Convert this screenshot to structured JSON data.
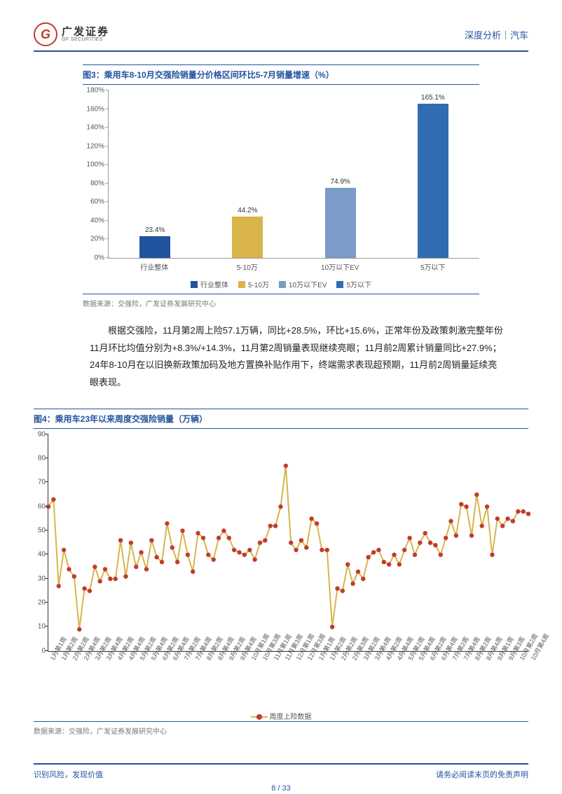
{
  "header": {
    "logo_cn": "广发证券",
    "logo_en": "GF SECURITIES",
    "right": "深度分析｜汽车"
  },
  "fig3": {
    "title": "图3：乘用车8-10月交强险销量分价格区间环比5-7月销量增速（%）",
    "type": "bar",
    "categories": [
      "行业整体",
      "5-10万",
      "10万以下EV",
      "5万以下"
    ],
    "values": [
      23.4,
      44.2,
      74.9,
      165.1
    ],
    "value_labels": [
      "23.4%",
      "44.2%",
      "74.9%",
      "165.1%"
    ],
    "colors": [
      "#2253a0",
      "#d9b44a",
      "#7a9cc6",
      "#2f6db0"
    ],
    "ylim": [
      0,
      180
    ],
    "ytick_step": 20,
    "ytick_suffix": "%",
    "legend": [
      "行业整体",
      "5-10万",
      "10万以下EV",
      "5万以下"
    ],
    "source": "数据来源：交强险，广发证券发展研究中心"
  },
  "body": "根据交强险，11月第2周上险57.1万辆，同比+28.5%，环比+15.6%，正常年份及政策刺激完整年份11月环比均值分别为+8.3%/+14.3%，11月第2周销量表现继续亮眼；11月前2周累计销量同比+27.9%；24年8-10月在以旧换新政策加码及地方置换补贴作用下，终端需求表现超预期，11月前2周销量延续亮眼表现。",
  "fig4": {
    "title": "图4：乘用车23年以来周度交强险销量（万辆）",
    "type": "line",
    "ylim": [
      0,
      90
    ],
    "ytick_step": 10,
    "line_color": "#d9b44a",
    "marker_color": "#c23a2e",
    "series_label": "周度上险数据",
    "x_labels": [
      "1月第1周",
      "1月第2周",
      "2月第2周",
      "2月第4周",
      "3月第2周",
      "3月第4周",
      "4月第2周",
      "4月第4周",
      "5月第2周",
      "5月第4周",
      "6月第2周",
      "6月第4周",
      "7月第2周",
      "7月第4周",
      "8月第2周",
      "8月第4周",
      "9月第2周",
      "9月第4周",
      "10月第1周",
      "10月第3周",
      "11月第1周",
      "11月第3周",
      "12月第1周",
      "12月第3周",
      "1月第1周",
      "1月第2周",
      "2月第2周",
      "2月第3周",
      "3月第2周",
      "3月第4周",
      "4月第2周",
      "4月第4周",
      "5月第2周",
      "5月第4周",
      "6月第2周",
      "6月第4周",
      "7月第2周",
      "7月第4周",
      "8月第2周",
      "8月第4周",
      "9月第1周",
      "9月第3周",
      "10月第2周",
      "10月第4周"
    ],
    "values": [
      60,
      63,
      27,
      42,
      34,
      31,
      9,
      26,
      25,
      35,
      29,
      34,
      30,
      30,
      46,
      31,
      45,
      35,
      41,
      34,
      46,
      39,
      37,
      53,
      43,
      37,
      50,
      40,
      33,
      49,
      47,
      40,
      38,
      47,
      50,
      47,
      42,
      41,
      40,
      42,
      38,
      45,
      46,
      52,
      52,
      60,
      77,
      45,
      42,
      46,
      43,
      55,
      53,
      42,
      42,
      10,
      26,
      25,
      36,
      28,
      33,
      30,
      39,
      41,
      42,
      37,
      36,
      40,
      36,
      42,
      47,
      40,
      45,
      49,
      45,
      44,
      40,
      47,
      54,
      48,
      61,
      60,
      48,
      65,
      52,
      60,
      40,
      55,
      52,
      55,
      54,
      58,
      58,
      57
    ],
    "source": "数据来源：交强险，广发证券发展研究中心"
  },
  "footer": {
    "left": "识别风险，发现价值",
    "right": "请务必阅读末页的免责声明",
    "page": "8",
    "total": "33"
  }
}
